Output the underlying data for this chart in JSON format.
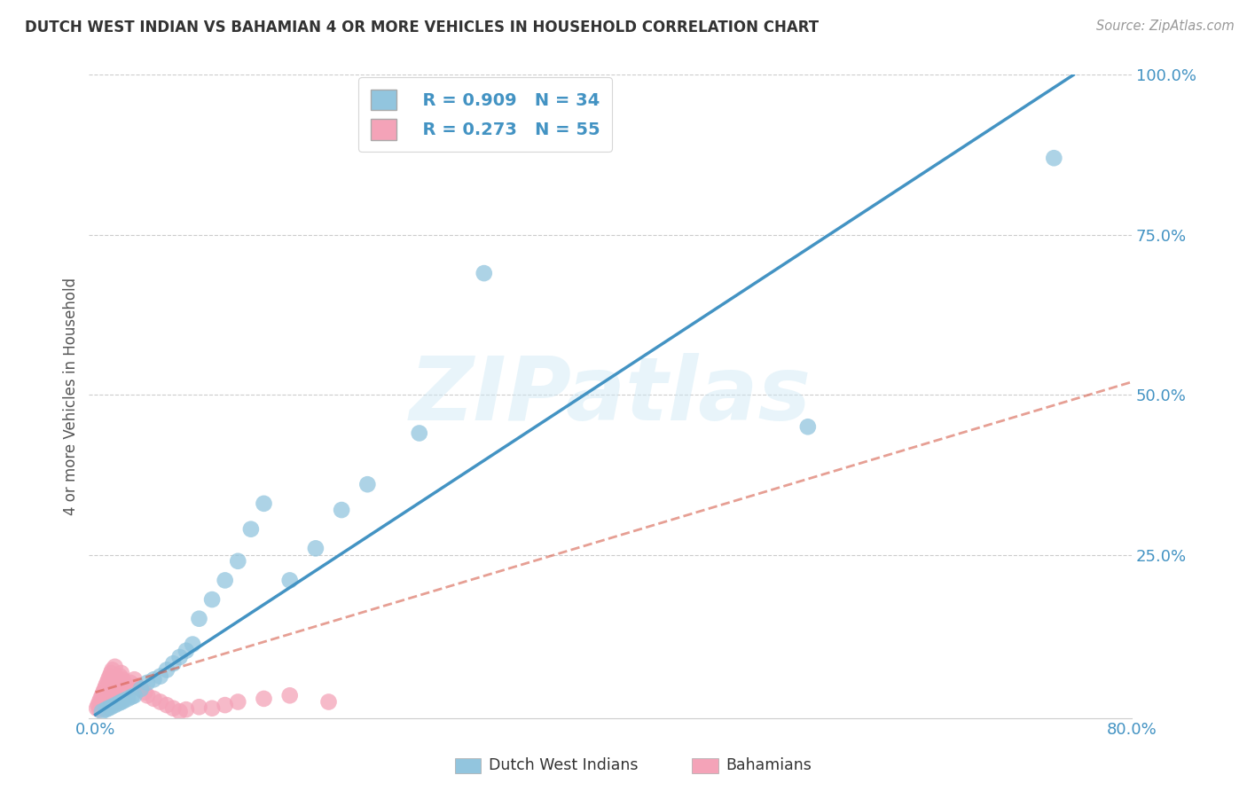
{
  "title": "DUTCH WEST INDIAN VS BAHAMIAN 4 OR MORE VEHICLES IN HOUSEHOLD CORRELATION CHART",
  "source": "Source: ZipAtlas.com",
  "ylabel": "4 or more Vehicles in Household",
  "xlabel": "",
  "xlim": [
    -0.005,
    0.8
  ],
  "ylim": [
    -0.005,
    1.0
  ],
  "xticks": [
    0.0,
    0.2,
    0.4,
    0.6,
    0.8
  ],
  "xticklabels": [
    "0.0%",
    "",
    "",
    "",
    "80.0%"
  ],
  "yticks": [
    0.0,
    0.25,
    0.5,
    0.75,
    1.0
  ],
  "yticklabels": [
    "",
    "25.0%",
    "50.0%",
    "75.0%",
    "100.0%"
  ],
  "legend_r1": "R = 0.909   N = 34",
  "legend_r2": "R = 0.273   N = 55",
  "series1_color": "#92c5de",
  "series2_color": "#f4a3b8",
  "trendline1_color": "#4393c3",
  "trendline2_color": "#d6604d",
  "trendline2_style": "--",
  "watermark_text": "ZIPatlas",
  "background_color": "#ffffff",
  "dutch_west_indian_x": [
    0.005,
    0.008,
    0.01,
    0.012,
    0.015,
    0.018,
    0.02,
    0.022,
    0.025,
    0.028,
    0.03,
    0.035,
    0.04,
    0.045,
    0.05,
    0.055,
    0.06,
    0.065,
    0.07,
    0.075,
    0.08,
    0.09,
    0.1,
    0.11,
    0.12,
    0.13,
    0.15,
    0.17,
    0.19,
    0.21,
    0.25,
    0.3,
    0.55,
    0.74
  ],
  "dutch_west_indian_y": [
    0.005,
    0.008,
    0.01,
    0.012,
    0.015,
    0.018,
    0.02,
    0.022,
    0.025,
    0.028,
    0.03,
    0.04,
    0.05,
    0.055,
    0.06,
    0.07,
    0.08,
    0.09,
    0.1,
    0.11,
    0.15,
    0.18,
    0.21,
    0.24,
    0.29,
    0.33,
    0.21,
    0.26,
    0.32,
    0.36,
    0.44,
    0.69,
    0.45,
    0.87
  ],
  "bahamian_x": [
    0.001,
    0.002,
    0.003,
    0.003,
    0.004,
    0.004,
    0.005,
    0.005,
    0.006,
    0.006,
    0.007,
    0.007,
    0.008,
    0.008,
    0.009,
    0.009,
    0.01,
    0.01,
    0.011,
    0.011,
    0.012,
    0.012,
    0.013,
    0.013,
    0.014,
    0.015,
    0.015,
    0.016,
    0.017,
    0.018,
    0.019,
    0.02,
    0.021,
    0.022,
    0.023,
    0.025,
    0.027,
    0.03,
    0.032,
    0.035,
    0.038,
    0.04,
    0.045,
    0.05,
    0.055,
    0.06,
    0.065,
    0.07,
    0.08,
    0.09,
    0.1,
    0.11,
    0.13,
    0.15,
    0.18
  ],
  "bahamian_y": [
    0.01,
    0.015,
    0.008,
    0.02,
    0.012,
    0.025,
    0.015,
    0.03,
    0.018,
    0.035,
    0.02,
    0.04,
    0.025,
    0.045,
    0.03,
    0.05,
    0.025,
    0.055,
    0.03,
    0.06,
    0.035,
    0.065,
    0.04,
    0.07,
    0.035,
    0.04,
    0.075,
    0.045,
    0.05,
    0.055,
    0.06,
    0.065,
    0.055,
    0.05,
    0.045,
    0.04,
    0.05,
    0.055,
    0.045,
    0.04,
    0.035,
    0.03,
    0.025,
    0.02,
    0.015,
    0.01,
    0.005,
    0.008,
    0.012,
    0.01,
    0.015,
    0.02,
    0.025,
    0.03,
    0.02
  ],
  "trendline1_x": [
    0.0,
    0.755
  ],
  "trendline1_y": [
    0.0,
    1.0
  ],
  "trendline2_x": [
    0.0,
    0.8
  ],
  "trendline2_y": [
    0.035,
    0.52
  ]
}
